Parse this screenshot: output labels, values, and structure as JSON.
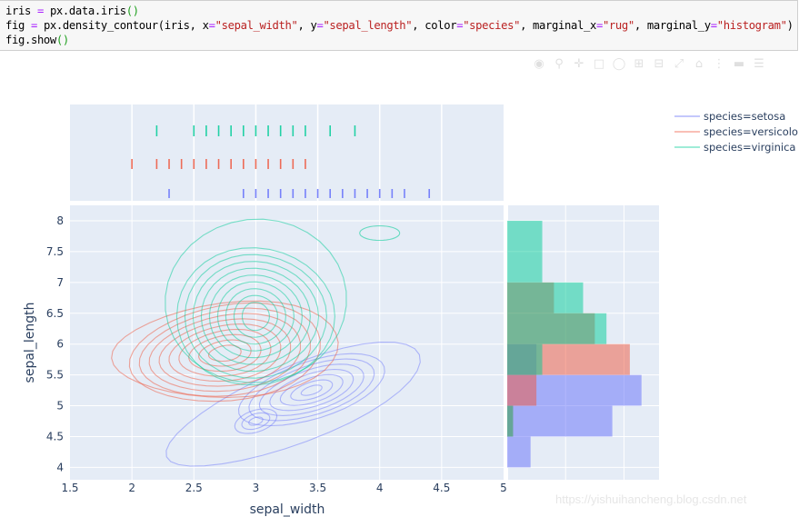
{
  "code_cell": {
    "lines": [
      "iris = px.data.iris()",
      "fig = px.density_contour(iris, x=\"sepal_width\", y=\"sepal_length\", color=\"species\", marginal_x=\"rug\", marginal_y=\"histogram\")",
      "fig.show()"
    ]
  },
  "modebar": {
    "buttons": [
      "camera-icon",
      "zoom-icon",
      "pan-icon",
      "box-select-icon",
      "lasso-icon",
      "zoom-in-icon",
      "zoom-out-icon",
      "autoscale-icon",
      "home-icon",
      "spike-lines-icon",
      "hover-closest-icon",
      "hover-compare-icon",
      "plotly-logo-icon"
    ]
  },
  "colors": {
    "setosa": "#636efa",
    "versicolor": "#ef553b",
    "virginica": "#00cc96",
    "plot_bg": "#e5ecf6",
    "grid": "#ffffff",
    "axis_text": "#2a3f5f"
  },
  "watermark": "https://yishuihancheng.blog.csdn.net",
  "chart_data": {
    "type": "contour",
    "title": "",
    "xlabel": "sepal_width",
    "ylabel": "sepal_length",
    "xlim": [
      1.5,
      5
    ],
    "ylim": [
      3.8,
      8.25
    ],
    "x_ticks": [
      "1.5",
      "2",
      "2.5",
      "3",
      "3.5",
      "4",
      "4.5",
      "5"
    ],
    "y_ticks": [
      "4",
      "4.5",
      "5",
      "5.5",
      "6",
      "6.5",
      "7",
      "7.5",
      "8"
    ],
    "grid": true,
    "legend": {
      "position": "top-right",
      "entries": [
        "species=setosa",
        "species=versicolor",
        "species=virginica"
      ]
    },
    "series": [
      {
        "name": "species=setosa",
        "color": "#636efa",
        "density_peaks": [
          {
            "x": 3.45,
            "y": 5.25
          },
          {
            "x": 3.0,
            "y": 4.75
          }
        ],
        "rug_x": [
          2.3,
          2.9,
          3.0,
          3.1,
          3.2,
          3.3,
          3.4,
          3.5,
          3.6,
          3.7,
          3.8,
          3.9,
          4.0,
          4.1,
          4.2,
          4.4
        ],
        "histogram_y": {
          "bins": [
            "4-4.5",
            "4.5-5",
            "5-5.5",
            "5.5-6"
          ],
          "counts": [
            4,
            18,
            23,
            5
          ]
        }
      },
      {
        "name": "species=versicolor",
        "color": "#ef553b",
        "density_peaks": [
          {
            "x": 2.8,
            "y": 5.8
          },
          {
            "x": 3.0,
            "y": 6.2
          }
        ],
        "rug_x": [
          2.0,
          2.2,
          2.3,
          2.4,
          2.5,
          2.6,
          2.7,
          2.8,
          2.9,
          3.0,
          3.1,
          3.2,
          3.3,
          3.4
        ],
        "histogram_y": {
          "bins": [
            "4.5-5",
            "5-5.5",
            "5.5-6",
            "6-6.5",
            "6.5-7"
          ],
          "counts": [
            1,
            5,
            21,
            15,
            8
          ]
        }
      },
      {
        "name": "species=virginica",
        "color": "#00cc96",
        "density_peaks": [
          {
            "x": 3.0,
            "y": 6.6
          },
          {
            "x": 4.0,
            "y": 7.7
          }
        ],
        "rug_x": [
          2.2,
          2.5,
          2.6,
          2.7,
          2.8,
          2.9,
          3.0,
          3.1,
          3.2,
          3.3,
          3.4,
          3.6,
          3.8
        ],
        "histogram_y": {
          "bins": [
            "4.5-5",
            "5-5.5",
            "5.5-6",
            "6-6.5",
            "6.5-7",
            "7-7.5",
            "7.5-8"
          ],
          "counts": [
            1,
            0,
            6,
            17,
            13,
            6,
            6
          ]
        }
      }
    ],
    "marginal_x": "rug",
    "marginal_y": "histogram",
    "histogram_x_range": [
      0,
      26
    ]
  }
}
